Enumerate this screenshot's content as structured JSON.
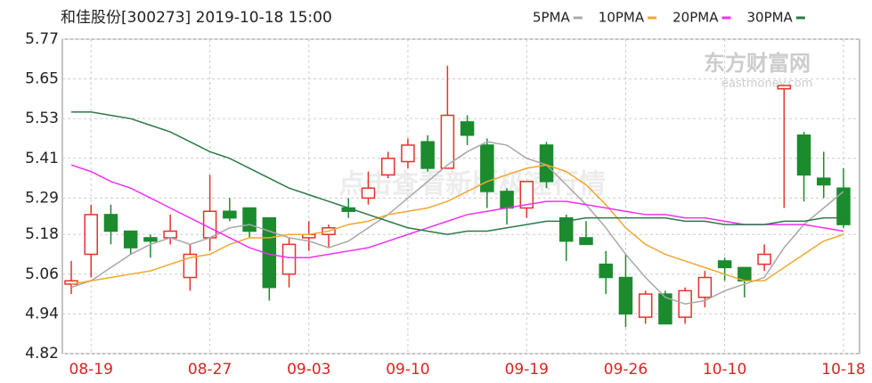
{
  "chart_data": {
    "type": "candlestick",
    "title": "和佳股份[300273] 2019-10-18 15:00",
    "watermark": "东方财富网",
    "watermark_sub": "eastmoney.com",
    "overlay_text": "点击查看新版极速行情",
    "categories": [
      null,
      "08-19",
      null,
      null,
      null,
      null,
      null,
      "08-27",
      null,
      null,
      null,
      null,
      "09-03",
      null,
      null,
      null,
      null,
      "09-10",
      null,
      null,
      null,
      null,
      null,
      "09-19",
      null,
      null,
      null,
      null,
      "09-26",
      null,
      null,
      null,
      null,
      "10-10",
      null,
      null,
      null,
      null,
      null,
      "10-18"
    ],
    "open": [
      5.03,
      5.12,
      5.24,
      5.19,
      5.17,
      5.17,
      5.05,
      5.17,
      5.25,
      5.26,
      5.23,
      5.06,
      5.17,
      5.18,
      5.26,
      5.29,
      5.36,
      5.4,
      5.46,
      5.38,
      5.52,
      5.45,
      5.31,
      5.26,
      5.45,
      5.23,
      5.17,
      5.09,
      5.05,
      4.93,
      5.0,
      4.93,
      4.99,
      5.1,
      5.08,
      5.09,
      5.62,
      5.48,
      5.35,
      5.32
    ],
    "high": [
      5.1,
      5.27,
      5.27,
      5.19,
      5.18,
      5.24,
      5.15,
      5.36,
      5.29,
      5.26,
      5.23,
      5.17,
      5.22,
      5.21,
      5.29,
      5.37,
      5.43,
      5.47,
      5.48,
      5.69,
      5.54,
      5.47,
      5.32,
      5.34,
      5.46,
      5.24,
      5.22,
      5.13,
      5.12,
      5.01,
      5.01,
      5.02,
      5.07,
      5.11,
      5.08,
      5.15,
      5.63,
      5.49,
      5.43,
      5.38
    ],
    "low": [
      5.0,
      5.05,
      5.15,
      5.12,
      5.11,
      5.15,
      5.01,
      5.13,
      5.22,
      5.17,
      4.98,
      5.02,
      5.13,
      5.14,
      5.23,
      5.27,
      5.35,
      5.38,
      5.37,
      5.38,
      5.45,
      5.26,
      5.21,
      5.23,
      5.32,
      5.1,
      5.15,
      5.0,
      4.9,
      4.91,
      4.91,
      4.91,
      4.96,
      5.04,
      4.99,
      5.07,
      5.26,
      5.28,
      5.29,
      5.2
    ],
    "close": [
      5.04,
      5.24,
      5.19,
      5.14,
      5.16,
      5.19,
      5.12,
      5.25,
      5.23,
      5.19,
      5.02,
      5.15,
      5.18,
      5.2,
      5.25,
      5.32,
      5.41,
      5.45,
      5.38,
      5.54,
      5.48,
      5.31,
      5.26,
      5.34,
      5.34,
      5.16,
      5.15,
      5.05,
      4.94,
      5.0,
      4.91,
      5.01,
      5.05,
      5.08,
      5.04,
      5.12,
      5.63,
      5.36,
      5.33,
      5.21
    ],
    "up_color": "#e8302c",
    "down_color": "#1b8b2e",
    "series": [
      {
        "name": "5PMA",
        "color": "#a8a8a8",
        "values": [
          5.02,
          5.04,
          5.08,
          5.12,
          5.15,
          5.17,
          5.15,
          5.17,
          5.2,
          5.21,
          5.19,
          5.17,
          5.16,
          5.14,
          5.16,
          5.2,
          5.24,
          5.29,
          5.34,
          5.39,
          5.43,
          5.46,
          5.45,
          5.41,
          5.39,
          5.33,
          5.27,
          5.2,
          5.12,
          5.05,
          4.99,
          4.97,
          4.98,
          5.01,
          5.03,
          5.05,
          5.14,
          5.21,
          5.26,
          5.31
        ]
      },
      {
        "name": "10PMA",
        "color": "#f0a830",
        "values": [
          5.03,
          5.04,
          5.05,
          5.06,
          5.07,
          5.09,
          5.11,
          5.12,
          5.15,
          5.17,
          5.17,
          5.18,
          5.18,
          5.19,
          5.21,
          5.22,
          5.24,
          5.25,
          5.26,
          5.28,
          5.31,
          5.34,
          5.36,
          5.38,
          5.39,
          5.37,
          5.33,
          5.27,
          5.2,
          5.15,
          5.12,
          5.1,
          5.08,
          5.06,
          5.04,
          5.04,
          5.08,
          5.12,
          5.16,
          5.18
        ]
      },
      {
        "name": "20PMA",
        "color": "#f030f0",
        "values": [
          5.39,
          5.37,
          5.34,
          5.32,
          5.29,
          5.26,
          5.23,
          5.2,
          5.17,
          5.14,
          5.12,
          5.11,
          5.11,
          5.12,
          5.13,
          5.14,
          5.16,
          5.18,
          5.2,
          5.22,
          5.24,
          5.25,
          5.26,
          5.27,
          5.28,
          5.28,
          5.27,
          5.26,
          5.25,
          5.24,
          5.24,
          5.23,
          5.23,
          5.22,
          5.21,
          5.21,
          5.21,
          5.21,
          5.2,
          5.19
        ]
      },
      {
        "name": "30PMA",
        "color": "#2a7a48",
        "values": [
          5.55,
          5.55,
          5.54,
          5.53,
          5.51,
          5.49,
          5.46,
          5.43,
          5.41,
          5.38,
          5.35,
          5.32,
          5.3,
          5.28,
          5.26,
          5.24,
          5.22,
          5.2,
          5.19,
          5.18,
          5.19,
          5.19,
          5.2,
          5.21,
          5.22,
          5.22,
          5.23,
          5.23,
          5.23,
          5.23,
          5.23,
          5.22,
          5.22,
          5.21,
          5.21,
          5.21,
          5.22,
          5.22,
          5.23,
          5.23
        ]
      }
    ],
    "ylim": [
      4.82,
      5.77
    ],
    "yticks": [
      5.77,
      5.65,
      5.53,
      5.41,
      5.29,
      5.18,
      5.06,
      4.94,
      4.82
    ],
    "grid": true
  }
}
